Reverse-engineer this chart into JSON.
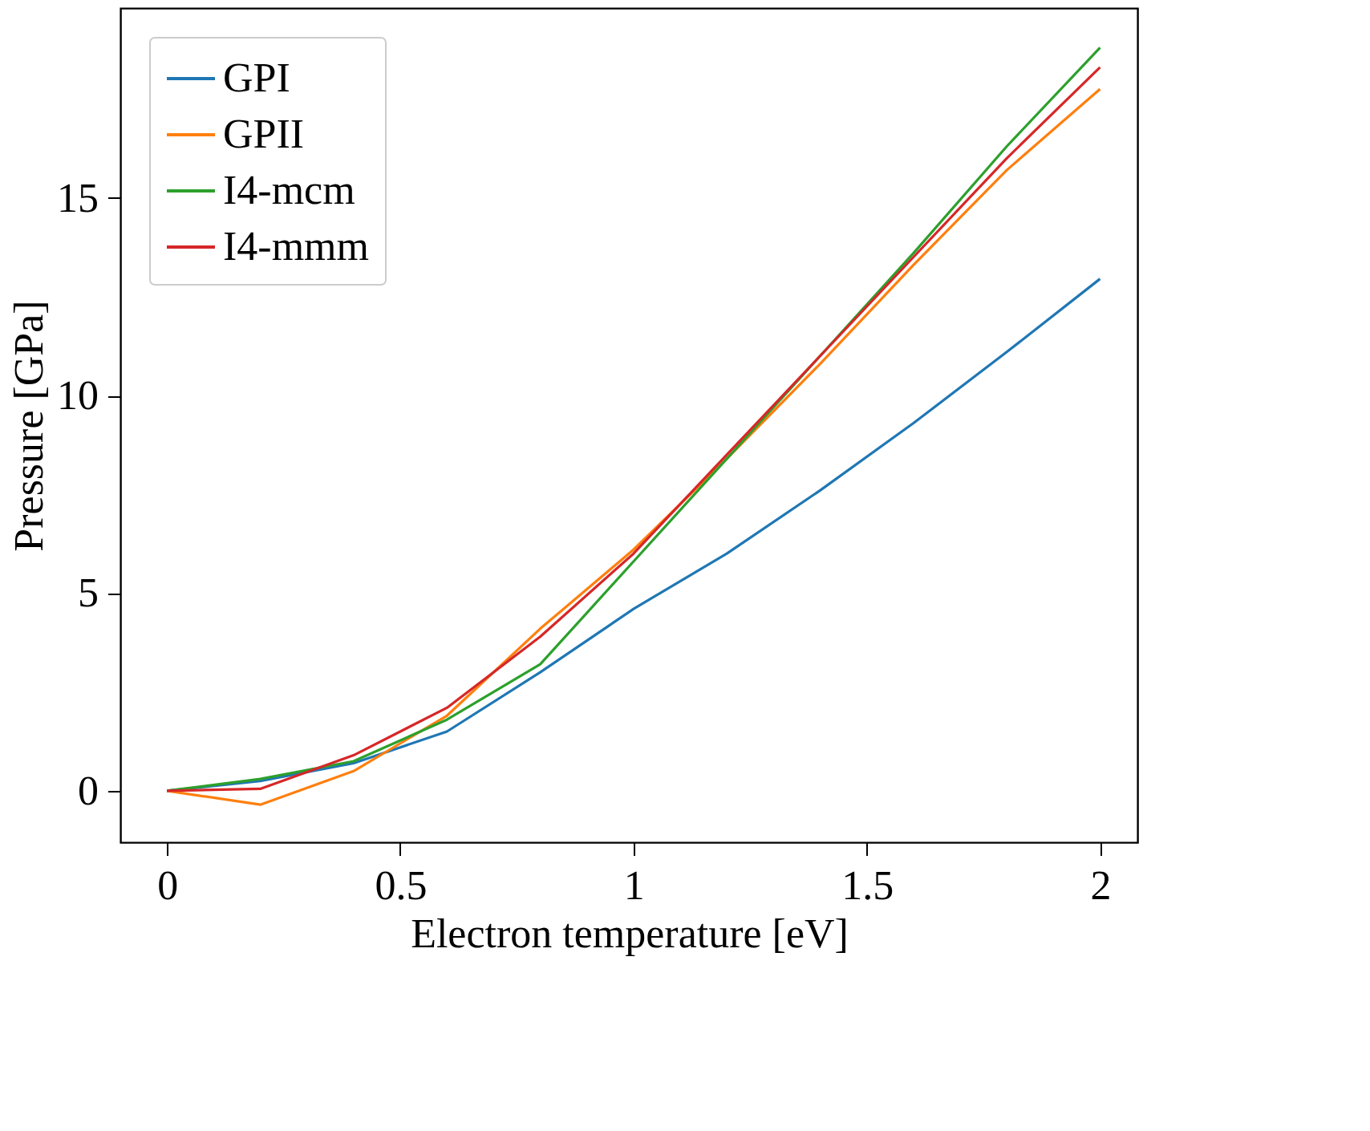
{
  "chart_data": {
    "type": "line",
    "xlabel": "Electron temperature [eV]",
    "ylabel": "Pressure [GPa]",
    "x": [
      0,
      0.2,
      0.4,
      0.6,
      0.8,
      1.0,
      1.2,
      1.4,
      1.6,
      1.8,
      2.0
    ],
    "series": [
      {
        "name": "GPI",
        "color": "#1f77b4",
        "values": [
          0,
          0.25,
          0.7,
          1.5,
          3.0,
          4.6,
          6.0,
          7.6,
          9.3,
          11.1,
          12.95
        ]
      },
      {
        "name": "GPII",
        "color": "#ff7f0e",
        "values": [
          0,
          -0.35,
          0.5,
          1.9,
          4.1,
          6.1,
          8.4,
          10.8,
          13.3,
          15.7,
          17.75
        ]
      },
      {
        "name": "I4-mcm",
        "color": "#2ca02c",
        "values": [
          0,
          0.3,
          0.75,
          1.8,
          3.2,
          5.8,
          8.4,
          11.0,
          13.6,
          16.3,
          18.8
        ]
      },
      {
        "name": "I4-mmm",
        "color": "#d62728",
        "values": [
          0,
          0.05,
          0.9,
          2.1,
          3.9,
          6.0,
          8.5,
          11.0,
          13.5,
          16.0,
          18.3
        ]
      }
    ],
    "xlim": [
      -0.1,
      2.08
    ],
    "xticks": [
      0,
      0.5,
      1,
      1.5,
      2
    ],
    "ylim": [
      -1.3,
      19.8
    ],
    "yticks": [
      0,
      5,
      10,
      15
    ],
    "grid": false,
    "legend": "top left"
  }
}
